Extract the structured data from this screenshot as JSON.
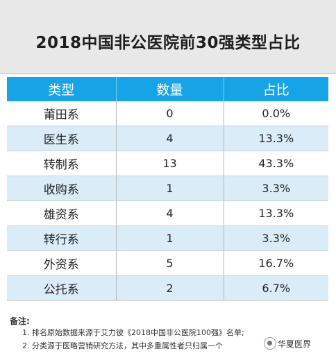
{
  "title": "2018中国非公医院前30强类型占比",
  "headers": [
    "类型",
    "数量",
    "占比"
  ],
  "rows": [
    {
      "type": "莆田系",
      "count": "0",
      "ratio": "0.0%"
    },
    {
      "type": "医生系",
      "count": "4",
      "ratio": "13.3%"
    },
    {
      "type": "转制系",
      "count": "13",
      "ratio": "43.3%"
    },
    {
      "type": "收购系",
      "count": "1",
      "ratio": "3.3%"
    },
    {
      "type": "雄资系",
      "count": "4",
      "ratio": "13.3%"
    },
    {
      "type": "转行系",
      "count": "1",
      "ratio": "3.3%"
    },
    {
      "type": "外资系",
      "count": "5",
      "ratio": "16.7%"
    },
    {
      "type": "公托系",
      "count": "2",
      "ratio": "6.7%"
    }
  ],
  "notes": {
    "heading": "备注:",
    "items": [
      "1. 排名原始数据来源于艾力彼《2018中国非公医院100强》名单;",
      "2. 分类源于医略营销研究方法，其中多重属性者只归属一个"
    ]
  },
  "watermark": {
    "text": "华夏医界",
    "icon": "wechat-logo-icon"
  },
  "colors": {
    "header_bg": "#16a4e6",
    "stripe_bg": "#daecf8",
    "title_bg": "#e8e8e8"
  }
}
